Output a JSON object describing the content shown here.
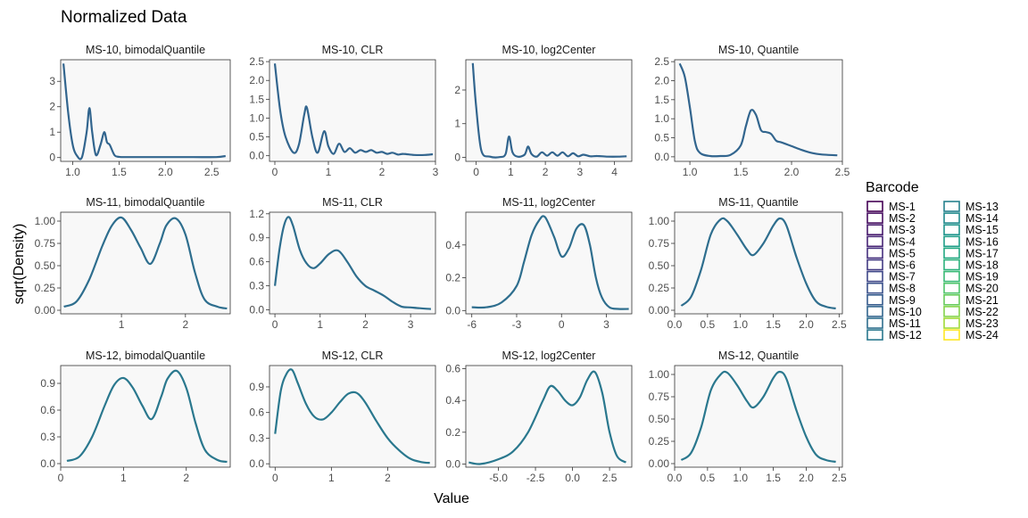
{
  "title": "Normalized Data",
  "xlabel": "Value",
  "ylabel": "sqrt(Density)",
  "legend": {
    "title": "Barcode",
    "placement": "right",
    "items": [
      {
        "label": "MS-1",
        "color": "#440154"
      },
      {
        "label": "MS-2",
        "color": "#470E61"
      },
      {
        "label": "MS-3",
        "color": "#481B6D"
      },
      {
        "label": "MS-4",
        "color": "#482576"
      },
      {
        "label": "MS-5",
        "color": "#46307E"
      },
      {
        "label": "MS-6",
        "color": "#433B83"
      },
      {
        "label": "MS-7",
        "color": "#3F4788"
      },
      {
        "label": "MS-8",
        "color": "#3B518B"
      },
      {
        "label": "MS-9",
        "color": "#365C8D"
      },
      {
        "label": "MS-10",
        "color": "#32658E"
      },
      {
        "label": "MS-11",
        "color": "#2E6E8E"
      },
      {
        "label": "MS-12",
        "color": "#2A788E"
      },
      {
        "label": "MS-13",
        "color": "#26818E"
      },
      {
        "label": "MS-14",
        "color": "#228A8D"
      },
      {
        "label": "MS-15",
        "color": "#1F948C"
      },
      {
        "label": "MS-16",
        "color": "#1F9E89"
      },
      {
        "label": "MS-17",
        "color": "#23A983"
      },
      {
        "label": "MS-18",
        "color": "#2DB27D"
      },
      {
        "label": "MS-19",
        "color": "#3ABA76"
      },
      {
        "label": "MS-20",
        "color": "#4FC46A"
      },
      {
        "label": "MS-21",
        "color": "#67CC5C"
      },
      {
        "label": "MS-22",
        "color": "#84D44B"
      },
      {
        "label": "MS-23",
        "color": "#A2DA37"
      },
      {
        "label": "MS-24",
        "color": "#FDE725"
      }
    ]
  },
  "chart_data": [
    {
      "type": "line",
      "title": "MS-10, bimodalQuantile",
      "series": [
        {
          "name": "MS-10",
          "color": "#32658E",
          "x": [
            0.9,
            0.95,
            1.0,
            1.05,
            1.1,
            1.15,
            1.18,
            1.21,
            1.25,
            1.3,
            1.34,
            1.37,
            1.4,
            1.45,
            1.5,
            1.6,
            1.8,
            2.0,
            2.3,
            2.55,
            2.65
          ],
          "values": [
            3.7,
            1.8,
            0.5,
            0.05,
            0.02,
            1.0,
            1.95,
            1.0,
            0.1,
            0.5,
            1.0,
            0.6,
            0.5,
            0.1,
            0.03,
            0.02,
            0.02,
            0.02,
            0.02,
            0.02,
            0.06
          ]
        }
      ],
      "xlim": [
        0.87,
        2.7
      ],
      "ylim": [
        -0.15,
        3.85
      ],
      "xticks": [
        1.0,
        1.5,
        2.0,
        2.5
      ],
      "xticklabels": [
        "1.0",
        "1.5",
        "2.0",
        "2.5"
      ],
      "yticks": [
        0,
        1,
        2,
        3
      ],
      "yticklabels": [
        "0",
        "1",
        "2",
        "3"
      ]
    },
    {
      "type": "line",
      "title": "MS-10, CLR",
      "series": [
        {
          "name": "MS-10",
          "color": "#32658E",
          "x": [
            0.0,
            0.1,
            0.2,
            0.35,
            0.45,
            0.55,
            0.6,
            0.7,
            0.8,
            0.92,
            1.0,
            1.1,
            1.2,
            1.3,
            1.4,
            1.5,
            1.6,
            1.7,
            1.8,
            1.9,
            2.0,
            2.1,
            2.2,
            2.3,
            2.4,
            2.6,
            2.8,
            2.95
          ],
          "values": [
            2.45,
            1.2,
            0.5,
            0.08,
            0.3,
            1.1,
            1.27,
            0.5,
            0.08,
            0.65,
            0.25,
            0.05,
            0.32,
            0.1,
            0.2,
            0.08,
            0.15,
            0.1,
            0.15,
            0.08,
            0.1,
            0.05,
            0.08,
            0.03,
            0.05,
            0.02,
            0.02,
            0.04
          ]
        }
      ],
      "xlim": [
        -0.1,
        3.0
      ],
      "ylim": [
        -0.15,
        2.55
      ],
      "xticks": [
        0,
        1,
        2,
        3
      ],
      "xticklabels": [
        "0",
        "1",
        "2",
        "3"
      ],
      "yticks": [
        0.0,
        0.5,
        1.0,
        1.5,
        2.0,
        2.5
      ],
      "yticklabels": [
        "0.0",
        "0.5",
        "1.0",
        "1.5",
        "2.0",
        "2.5"
      ]
    },
    {
      "type": "line",
      "title": "MS-10, log2Center",
      "series": [
        {
          "name": "MS-10",
          "color": "#32658E",
          "x": [
            -0.1,
            0.0,
            0.15,
            0.4,
            0.7,
            0.85,
            0.95,
            1.05,
            1.2,
            1.4,
            1.5,
            1.6,
            1.75,
            1.9,
            2.05,
            2.2,
            2.35,
            2.5,
            2.65,
            2.8,
            2.95,
            3.1,
            3.3,
            3.5,
            3.8,
            4.1,
            4.35
          ],
          "values": [
            2.8,
            1.5,
            0.2,
            0.02,
            0.01,
            0.1,
            0.62,
            0.15,
            0.02,
            0.08,
            0.32,
            0.1,
            0.02,
            0.15,
            0.05,
            0.15,
            0.05,
            0.15,
            0.03,
            0.12,
            0.03,
            0.08,
            0.03,
            0.04,
            0.02,
            0.02,
            0.03
          ]
        }
      ],
      "xlim": [
        -0.3,
        4.5
      ],
      "ylim": [
        -0.12,
        2.9
      ],
      "xticks": [
        0,
        1,
        2,
        3,
        4
      ],
      "xticklabels": [
        "0",
        "1",
        "2",
        "3",
        "4"
      ],
      "yticks": [
        0,
        1,
        2
      ],
      "yticklabels": [
        "0",
        "1",
        "2"
      ]
    },
    {
      "type": "line",
      "title": "MS-10, Quantile",
      "series": [
        {
          "name": "MS-10",
          "color": "#32658E",
          "x": [
            0.9,
            0.95,
            1.0,
            1.05,
            1.1,
            1.2,
            1.3,
            1.4,
            1.5,
            1.55,
            1.6,
            1.65,
            1.7,
            1.75,
            1.8,
            1.85,
            1.9,
            2.0,
            2.1,
            2.2,
            2.3,
            2.45
          ],
          "values": [
            2.45,
            2.1,
            1.3,
            0.4,
            0.1,
            0.02,
            0.02,
            0.05,
            0.3,
            0.8,
            1.22,
            1.1,
            0.7,
            0.65,
            0.6,
            0.42,
            0.38,
            0.28,
            0.18,
            0.1,
            0.06,
            0.04
          ]
        }
      ],
      "xlim": [
        0.85,
        2.5
      ],
      "ylim": [
        -0.12,
        2.55
      ],
      "xticks": [
        1.0,
        1.5,
        2.0,
        2.5
      ],
      "xticklabels": [
        "1.0",
        "1.5",
        "2.0",
        "2.5"
      ],
      "yticks": [
        0.0,
        0.5,
        1.0,
        1.5,
        2.0,
        2.5
      ],
      "yticklabels": [
        "0.0",
        "0.5",
        "1.0",
        "1.5",
        "2.0",
        "2.5"
      ]
    },
    {
      "type": "line",
      "title": "MS-11, bimodalQuantile",
      "series": [
        {
          "name": "MS-11",
          "color": "#2E6E8E",
          "x": [
            0.1,
            0.3,
            0.5,
            0.7,
            0.85,
            1.0,
            1.15,
            1.3,
            1.45,
            1.6,
            1.7,
            1.85,
            2.0,
            2.15,
            2.3,
            2.5,
            2.65
          ],
          "values": [
            0.04,
            0.1,
            0.35,
            0.72,
            0.95,
            1.04,
            0.9,
            0.7,
            0.52,
            0.75,
            0.95,
            1.03,
            0.85,
            0.42,
            0.12,
            0.04,
            0.02
          ]
        }
      ],
      "xlim": [
        0.05,
        2.7
      ],
      "ylim": [
        -0.04,
        1.1
      ],
      "xticks": [
        1,
        2
      ],
      "xticklabels": [
        "1",
        "2"
      ],
      "yticks": [
        0.0,
        0.25,
        0.5,
        0.75,
        1.0
      ],
      "yticklabels": [
        "0.00",
        "0.25",
        "0.50",
        "0.75",
        "1.00"
      ]
    },
    {
      "type": "line",
      "title": "MS-11, CLR",
      "series": [
        {
          "name": "MS-11",
          "color": "#2E6E8E",
          "x": [
            0.0,
            0.1,
            0.2,
            0.3,
            0.4,
            0.55,
            0.7,
            0.85,
            1.0,
            1.2,
            1.4,
            1.6,
            1.8,
            2.0,
            2.2,
            2.4,
            2.6,
            2.8,
            3.0,
            3.2,
            3.45
          ],
          "values": [
            0.3,
            0.75,
            1.05,
            1.16,
            1.05,
            0.75,
            0.58,
            0.52,
            0.58,
            0.7,
            0.74,
            0.6,
            0.42,
            0.3,
            0.24,
            0.18,
            0.1,
            0.04,
            0.03,
            0.02,
            0.01
          ]
        }
      ],
      "xlim": [
        -0.12,
        3.55
      ],
      "ylim": [
        -0.05,
        1.22
      ],
      "xticks": [
        0,
        1,
        2,
        3
      ],
      "xticklabels": [
        "0",
        "1",
        "2",
        "3"
      ],
      "yticks": [
        0.0,
        0.3,
        0.6,
        0.9,
        1.2
      ],
      "yticklabels": [
        "0.0",
        "0.3",
        "0.6",
        "0.9",
        "1.2"
      ]
    },
    {
      "type": "line",
      "title": "MS-11, log2Center",
      "series": [
        {
          "name": "MS-11",
          "color": "#2E6E8E",
          "x": [
            -6.0,
            -5.0,
            -4.0,
            -3.0,
            -2.5,
            -2.0,
            -1.5,
            -1.1,
            -0.5,
            0.0,
            0.5,
            1.0,
            1.5,
            1.9,
            2.3,
            2.7,
            3.2,
            3.8,
            4.5
          ],
          "values": [
            0.02,
            0.02,
            0.05,
            0.15,
            0.3,
            0.46,
            0.55,
            0.57,
            0.45,
            0.33,
            0.38,
            0.5,
            0.52,
            0.4,
            0.2,
            0.08,
            0.02,
            0.01,
            0.01
          ]
        }
      ],
      "xlim": [
        -6.4,
        4.7
      ],
      "ylim": [
        -0.02,
        0.6
      ],
      "xticks": [
        -6,
        -3,
        0,
        3
      ],
      "xticklabels": [
        "-6",
        "-3",
        "0",
        "3"
      ],
      "yticks": [
        0.0,
        0.2,
        0.4
      ],
      "yticklabels": [
        "0.0",
        "0.2",
        "0.4"
      ]
    },
    {
      "type": "line",
      "title": "MS-11, Quantile",
      "series": [
        {
          "name": "MS-11",
          "color": "#2E6E8E",
          "x": [
            0.1,
            0.25,
            0.4,
            0.55,
            0.7,
            0.8,
            0.95,
            1.1,
            1.2,
            1.35,
            1.5,
            1.6,
            1.7,
            1.85,
            2.0,
            2.15,
            2.3,
            2.45
          ],
          "values": [
            0.05,
            0.15,
            0.45,
            0.85,
            1.02,
            1.0,
            0.85,
            0.68,
            0.62,
            0.75,
            0.95,
            1.03,
            0.95,
            0.6,
            0.3,
            0.1,
            0.04,
            0.02
          ]
        }
      ],
      "xlim": [
        0.0,
        2.55
      ],
      "ylim": [
        -0.04,
        1.1
      ],
      "xticks": [
        0.0,
        0.5,
        1.0,
        1.5,
        2.0,
        2.5
      ],
      "xticklabels": [
        "0.0",
        "0.5",
        "1.0",
        "1.5",
        "2.0",
        "2.5"
      ],
      "yticks": [
        0.0,
        0.25,
        0.5,
        0.75,
        1.0
      ],
      "yticklabels": [
        "0.00",
        "0.25",
        "0.50",
        "0.75",
        "1.00"
      ]
    },
    {
      "type": "line",
      "title": "MS-12, bimodalQuantile",
      "series": [
        {
          "name": "MS-12",
          "color": "#2A788E",
          "x": [
            0.1,
            0.3,
            0.5,
            0.7,
            0.85,
            1.0,
            1.15,
            1.3,
            1.45,
            1.6,
            1.7,
            1.85,
            2.0,
            2.15,
            2.3,
            2.5,
            2.65
          ],
          "values": [
            0.03,
            0.08,
            0.3,
            0.65,
            0.88,
            0.96,
            0.85,
            0.65,
            0.5,
            0.75,
            0.95,
            1.04,
            0.85,
            0.45,
            0.15,
            0.04,
            0.02
          ]
        }
      ],
      "xlim": [
        0.0,
        2.7
      ],
      "ylim": [
        -0.04,
        1.1
      ],
      "xticks": [
        0,
        1,
        2
      ],
      "xticklabels": [
        "0",
        "1",
        "2"
      ],
      "yticks": [
        0.0,
        0.3,
        0.6,
        0.9
      ],
      "yticklabels": [
        "0.0",
        "0.3",
        "0.6",
        "0.9"
      ]
    },
    {
      "type": "line",
      "title": "MS-12, CLR",
      "series": [
        {
          "name": "MS-12",
          "color": "#2A788E",
          "x": [
            0.0,
            0.1,
            0.2,
            0.3,
            0.4,
            0.55,
            0.7,
            0.85,
            1.0,
            1.15,
            1.3,
            1.45,
            1.6,
            1.8,
            2.0,
            2.2,
            2.4,
            2.6,
            2.75
          ],
          "values": [
            0.35,
            0.85,
            1.05,
            1.1,
            0.95,
            0.7,
            0.55,
            0.52,
            0.6,
            0.72,
            0.82,
            0.83,
            0.72,
            0.5,
            0.3,
            0.16,
            0.06,
            0.02,
            0.01
          ]
        }
      ],
      "xlim": [
        -0.1,
        2.85
      ],
      "ylim": [
        -0.04,
        1.15
      ],
      "xticks": [
        0,
        1,
        2
      ],
      "xticklabels": [
        "0",
        "1",
        "2"
      ],
      "yticks": [
        0.0,
        0.3,
        0.6,
        0.9
      ],
      "yticklabels": [
        "0.0",
        "0.3",
        "0.6",
        "0.9"
      ]
    },
    {
      "type": "line",
      "title": "MS-12, log2Center",
      "series": [
        {
          "name": "MS-12",
          "color": "#2A788E",
          "x": [
            -7.0,
            -6.2,
            -5.0,
            -4.0,
            -3.0,
            -2.0,
            -1.5,
            -1.0,
            -0.5,
            0.0,
            0.5,
            1.0,
            1.5,
            2.0,
            2.5,
            3.0,
            3.6
          ],
          "values": [
            0.01,
            0.0,
            0.03,
            0.08,
            0.2,
            0.4,
            0.49,
            0.46,
            0.4,
            0.37,
            0.42,
            0.53,
            0.58,
            0.45,
            0.2,
            0.05,
            0.01
          ]
        }
      ],
      "xlim": [
        -7.2,
        4.0
      ],
      "ylim": [
        -0.02,
        0.62
      ],
      "xticks": [
        -5.0,
        -2.5,
        0.0,
        2.5
      ],
      "xticklabels": [
        "-5.0",
        "-2.5",
        "0.0",
        "2.5"
      ],
      "yticks": [
        0.0,
        0.2,
        0.4,
        0.6
      ],
      "yticklabels": [
        "0.0",
        "0.2",
        "0.4",
        "0.6"
      ]
    },
    {
      "type": "line",
      "title": "MS-12, Quantile",
      "series": [
        {
          "name": "MS-12",
          "color": "#2A788E",
          "x": [
            0.1,
            0.25,
            0.4,
            0.55,
            0.7,
            0.8,
            0.95,
            1.1,
            1.2,
            1.35,
            1.5,
            1.6,
            1.7,
            1.85,
            2.0,
            2.15,
            2.3,
            2.45
          ],
          "values": [
            0.04,
            0.12,
            0.4,
            0.82,
            1.0,
            1.02,
            0.88,
            0.7,
            0.63,
            0.75,
            0.96,
            1.03,
            0.95,
            0.6,
            0.3,
            0.1,
            0.04,
            0.02
          ]
        }
      ],
      "xlim": [
        0.0,
        2.55
      ],
      "ylim": [
        -0.04,
        1.1
      ],
      "xticks": [
        0.0,
        0.5,
        1.0,
        1.5,
        2.0,
        2.5
      ],
      "xticklabels": [
        "0.0",
        "0.5",
        "1.0",
        "1.5",
        "2.0",
        "2.5"
      ],
      "yticks": [
        0.0,
        0.25,
        0.5,
        0.75,
        1.0
      ],
      "yticklabels": [
        "0.00",
        "0.25",
        "0.50",
        "0.75",
        "1.00"
      ]
    }
  ]
}
